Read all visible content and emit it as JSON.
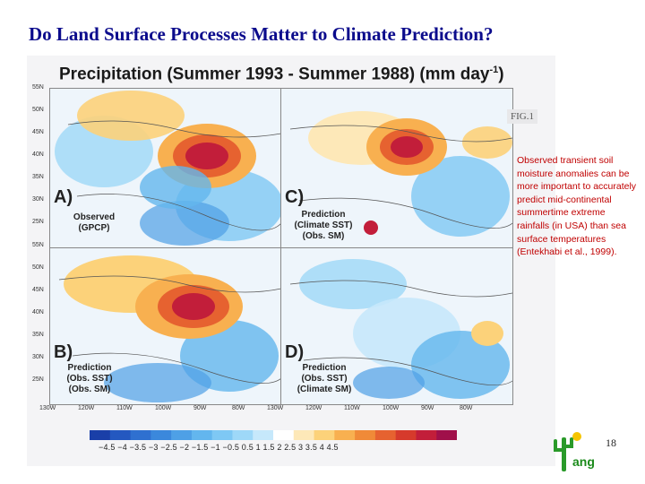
{
  "slide": {
    "title": "Do Land Surface Processes Matter to Climate Prediction?",
    "page_number": "18",
    "logo_text": "ang"
  },
  "figure": {
    "title_main": "Precipitation (Summer 1993 - Summer 1988) (mm day",
    "title_sup": "-1",
    "title_end": ")",
    "fig_label": "FIG.1",
    "panels": [
      {
        "letter": "A)",
        "caption": [
          "Observed",
          "(GPCP)"
        ]
      },
      {
        "letter": "C)",
        "caption": [
          "Prediction",
          "(Climate SST)",
          "(Obs. SM)"
        ]
      },
      {
        "letter": "B)",
        "caption": [
          "Prediction",
          "(Obs. SST)",
          "(Obs. SM)"
        ]
      },
      {
        "letter": "D)",
        "caption": [
          "Prediction",
          "(Obs. SST)",
          "(Climate SM)"
        ]
      }
    ],
    "lat_labels_top": [
      "55N",
      "50N",
      "45N",
      "40N",
      "35N",
      "30N",
      "25N"
    ],
    "lat_labels_bottom": [
      "55N",
      "50N",
      "45N",
      "40N",
      "35N",
      "30N",
      "25N"
    ],
    "lon_labels": [
      "130W",
      "120W",
      "110W",
      "100W",
      "90W",
      "80W",
      "130W",
      "120W",
      "110W",
      "100W",
      "90W",
      "80W"
    ],
    "colorbar_labels": "−4.5 −4 −3.5 −3 −2.5 −2 −1.5 −1 −0.5 0.5  1   1.5  2  2.5  3  3.5  4  4.5",
    "colorbar_colors": [
      "#1a3fa8",
      "#2458c0",
      "#2f70d0",
      "#3b88dc",
      "#4ea0e6",
      "#63b6ee",
      "#7ec8f4",
      "#9ed8f8",
      "#c6e8fb",
      "#ffffff",
      "#fde8b8",
      "#fcd27a",
      "#f8b050",
      "#f08a38",
      "#e66230",
      "#d63a2c",
      "#c21e3a",
      "#a0104a"
    ]
  },
  "note": "Observed transient soil moisture anomalies can be more important to accurately predict mid-continental summertime extreme rainfalls (in USA) than sea surface temperatures (Entekhabi et al., 1999)."
}
